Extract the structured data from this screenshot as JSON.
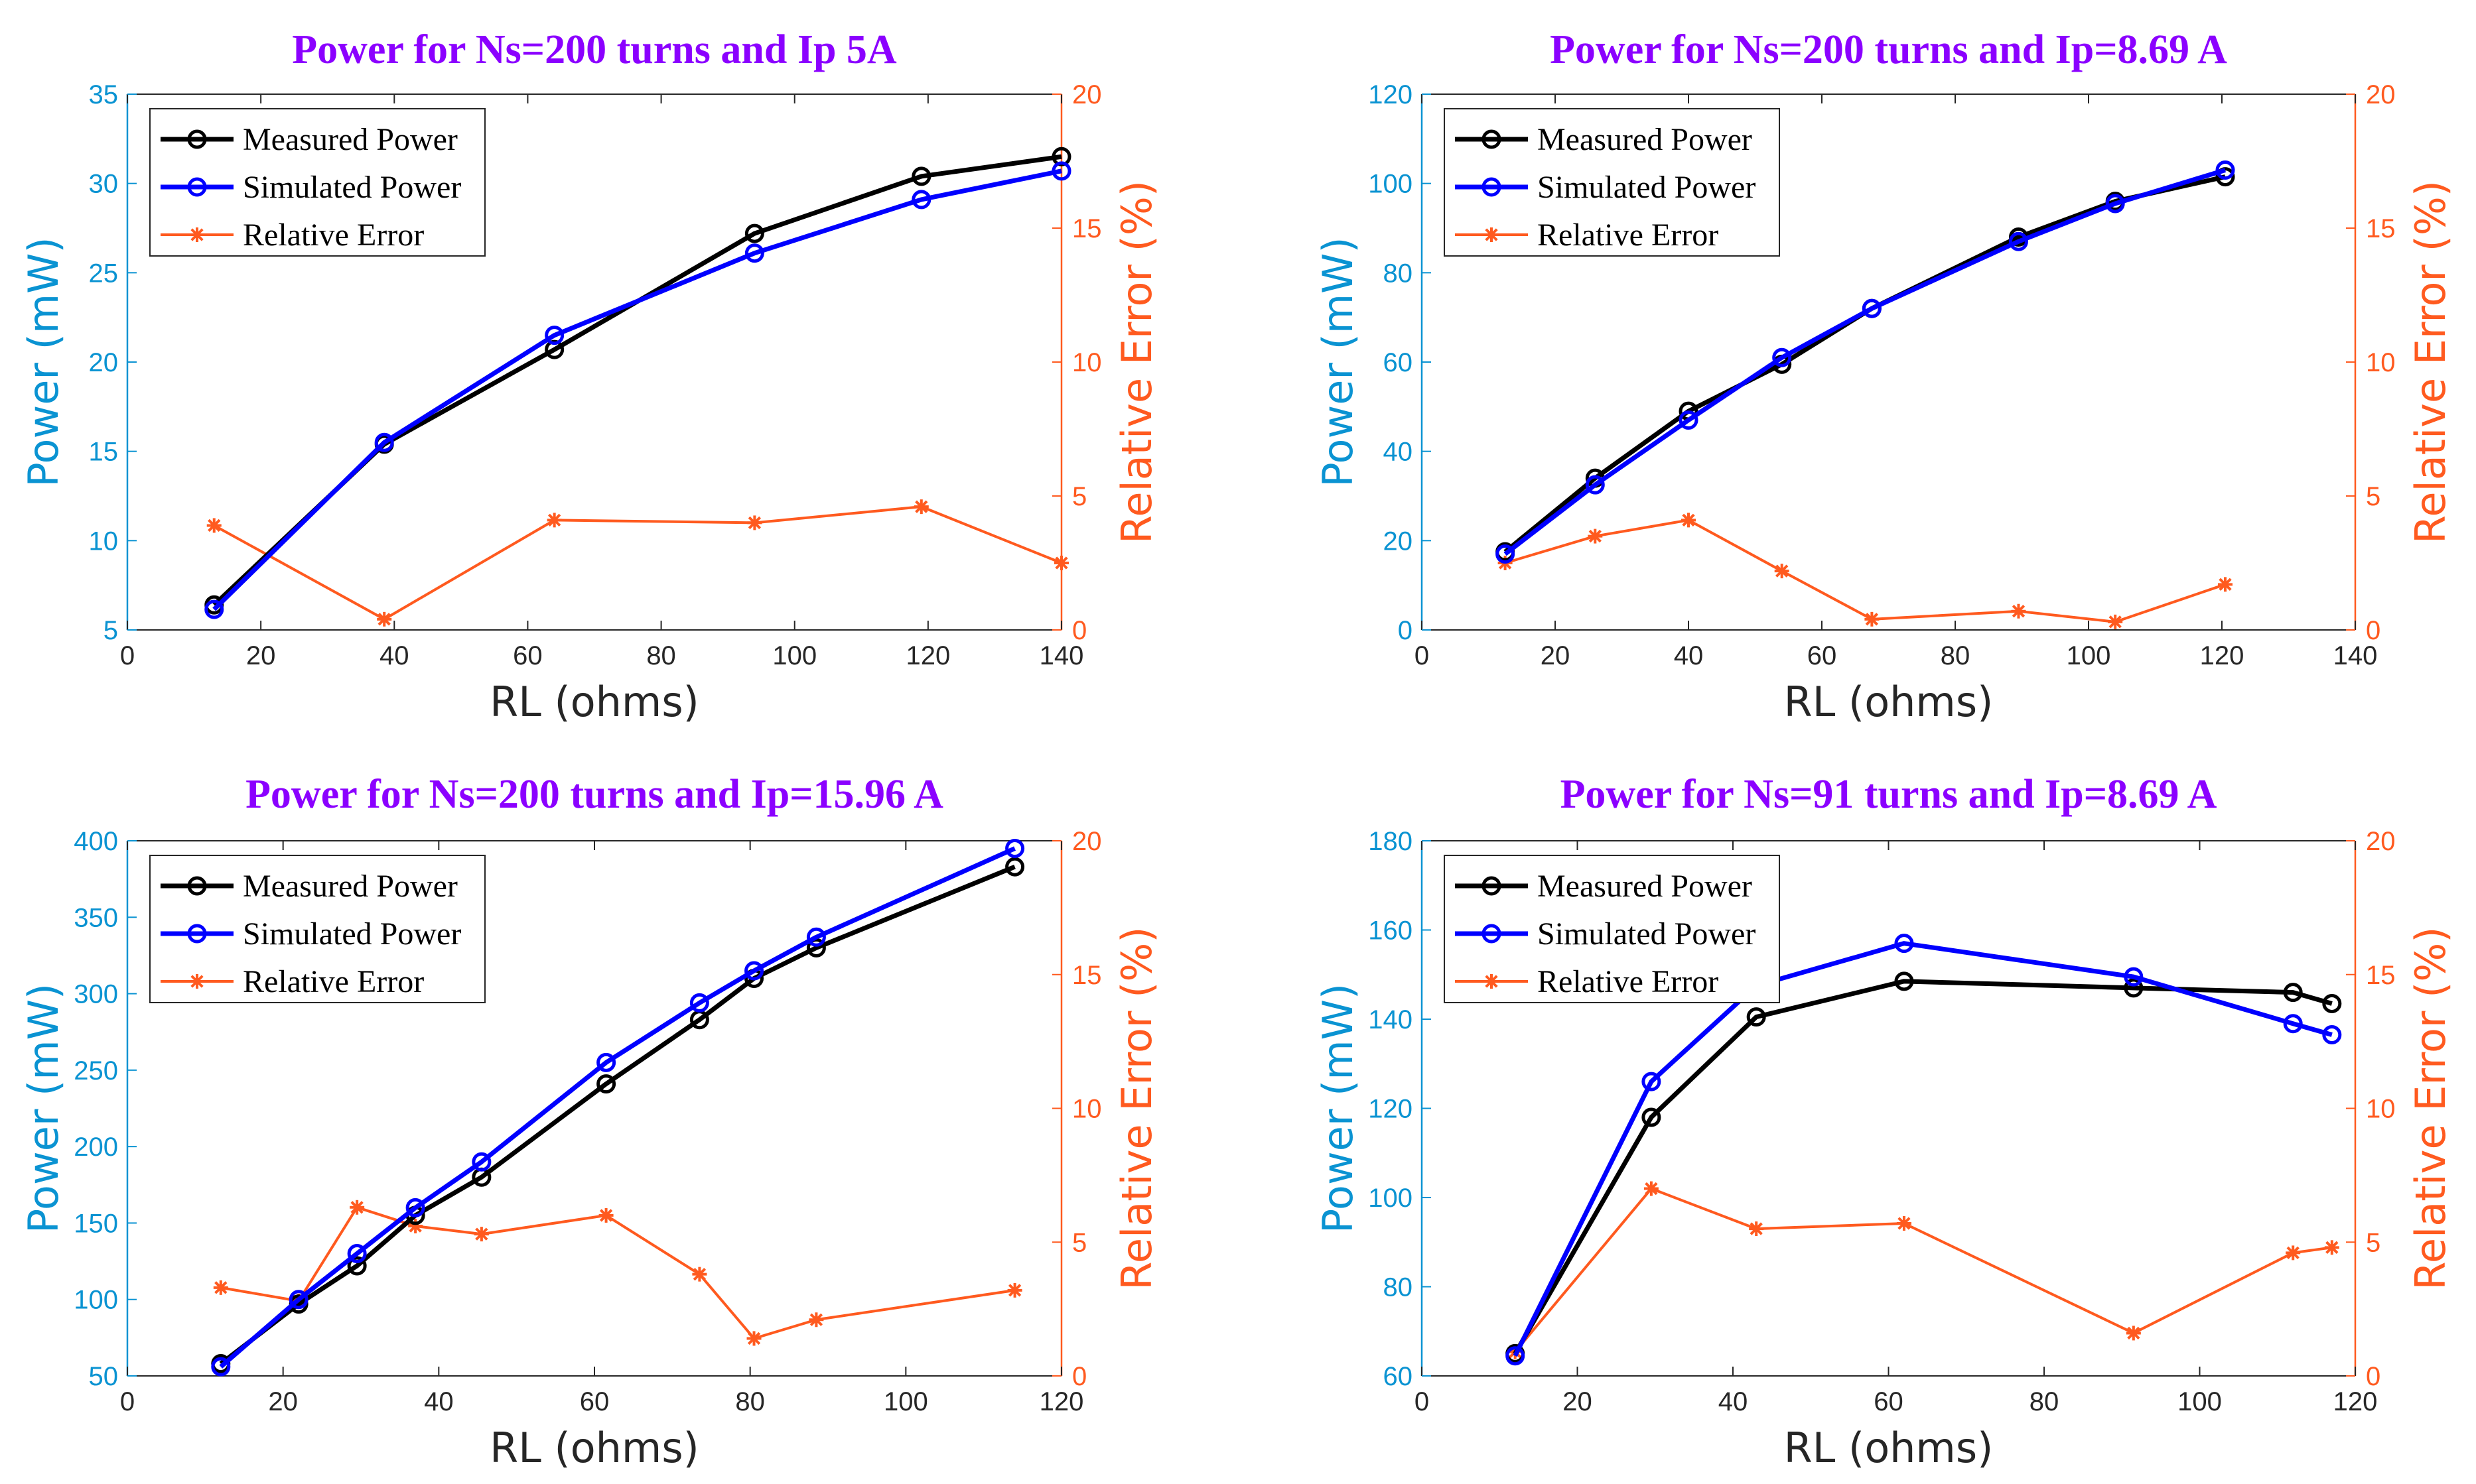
{
  "colors": {
    "measured": "#000000",
    "simulated": "#0000ff",
    "error": "#ff5a1f",
    "left_axis": "#0a93d2",
    "right_axis": "#ff5a1f",
    "title": "#8b00ff",
    "axis_box": "#262626"
  },
  "chart_data": [
    {
      "type": "line",
      "title": "Power for Ns=200 turns and Ip 5A",
      "xlabel": "RL (ohms)",
      "ylabel": "Power (mW)",
      "y2label": "Relative Error (%)",
      "xlim": [
        0,
        140
      ],
      "ylim": [
        5,
        35
      ],
      "y2lim": [
        0,
        20
      ],
      "xticks": [
        0,
        20,
        40,
        60,
        80,
        100,
        120,
        140
      ],
      "yticks": [
        5,
        10,
        15,
        20,
        25,
        30,
        35
      ],
      "y2ticks": [
        0,
        5,
        10,
        15,
        20
      ],
      "legend_location": "top-left",
      "series": [
        {
          "name": "Measured Power",
          "axis": "left",
          "marker": "circle",
          "x": [
            13,
            38.5,
            64,
            94,
            119,
            140
          ],
          "values": [
            6.4,
            15.4,
            20.7,
            27.2,
            30.4,
            31.5
          ]
        },
        {
          "name": "Simulated Power",
          "axis": "left",
          "marker": "circle",
          "x": [
            13,
            38.5,
            64,
            94,
            119,
            140
          ],
          "values": [
            6.15,
            15.5,
            21.5,
            26.1,
            29.1,
            30.7
          ]
        },
        {
          "name": "Relative Error",
          "axis": "right",
          "marker": "star",
          "x": [
            13,
            38.5,
            64,
            94,
            119,
            140
          ],
          "values": [
            3.9,
            0.4,
            4.1,
            4.0,
            4.6,
            2.5
          ]
        }
      ]
    },
    {
      "type": "line",
      "title": "Power for Ns=200 turns and Ip=8.69 A",
      "xlabel": "RL (ohms)",
      "ylabel": "Power (mW)",
      "y2label": "Relative Error (%)",
      "xlim": [
        0,
        140
      ],
      "ylim": [
        0,
        120
      ],
      "y2lim": [
        0,
        20
      ],
      "xticks": [
        0,
        20,
        40,
        60,
        80,
        100,
        120,
        140
      ],
      "yticks": [
        0,
        20,
        40,
        60,
        80,
        100,
        120
      ],
      "y2ticks": [
        0,
        5,
        10,
        15,
        20
      ],
      "legend_location": "top-left",
      "series": [
        {
          "name": "Measured Power",
          "axis": "left",
          "marker": "circle",
          "x": [
            12.5,
            26,
            40,
            54,
            67.5,
            89.5,
            104,
            120.5
          ],
          "values": [
            17.5,
            34,
            49,
            59.5,
            72,
            88,
            96,
            101.5
          ]
        },
        {
          "name": "Simulated Power",
          "axis": "left",
          "marker": "circle",
          "x": [
            12.5,
            26,
            40,
            54,
            67.5,
            89.5,
            104,
            120.5
          ],
          "values": [
            17,
            32.5,
            47,
            61,
            72,
            87,
            95.5,
            103
          ]
        },
        {
          "name": "Relative Error",
          "axis": "right",
          "marker": "star",
          "x": [
            12.5,
            26,
            40,
            54,
            67.5,
            89.5,
            104,
            120.5
          ],
          "values": [
            2.5,
            3.5,
            4.1,
            2.2,
            0.4,
            0.7,
            0.3,
            1.7
          ]
        }
      ]
    },
    {
      "type": "line",
      "title": "Power for Ns=200 turns and Ip=15.96 A",
      "xlabel": "RL (ohms)",
      "ylabel": "Power (mW)",
      "y2label": "Relative Error (%)",
      "xlim": [
        0,
        120
      ],
      "ylim": [
        50,
        400
      ],
      "y2lim": [
        0,
        20
      ],
      "xticks": [
        0,
        20,
        40,
        60,
        80,
        100,
        120
      ],
      "yticks": [
        50,
        100,
        150,
        200,
        250,
        300,
        350,
        400
      ],
      "y2ticks": [
        0,
        5,
        10,
        15,
        20
      ],
      "legend_location": "top-left",
      "series": [
        {
          "name": "Measured Power",
          "axis": "left",
          "marker": "circle",
          "x": [
            12,
            22,
            29.5,
            37,
            45.5,
            61.5,
            73.5,
            80.5,
            88.5,
            114
          ],
          "values": [
            58,
            97,
            122,
            155,
            180,
            241,
            283,
            310,
            330,
            383
          ]
        },
        {
          "name": "Simulated Power",
          "axis": "left",
          "marker": "circle",
          "x": [
            12,
            22,
            29.5,
            37,
            45.5,
            61.5,
            73.5,
            80.5,
            88.5,
            114
          ],
          "values": [
            56,
            100,
            130,
            160,
            190,
            255,
            294,
            315,
            337,
            395
          ]
        },
        {
          "name": "Relative Error",
          "axis": "right",
          "marker": "star",
          "x": [
            12,
            22,
            29.5,
            37,
            45.5,
            61.5,
            73.5,
            80.5,
            88.5,
            114
          ],
          "values": [
            3.3,
            2.8,
            6.3,
            5.6,
            5.3,
            6.0,
            3.8,
            1.4,
            2.1,
            3.2
          ]
        }
      ]
    },
    {
      "type": "line",
      "title": "Power for Ns=91 turns and Ip=8.69 A",
      "xlabel": "RL (ohms)",
      "ylabel": "Power (mW)",
      "y2label": "Relative Error (%)",
      "xlim": [
        0,
        120
      ],
      "ylim": [
        60,
        180
      ],
      "y2lim": [
        0,
        20
      ],
      "xticks": [
        0,
        20,
        40,
        60,
        80,
        100,
        120
      ],
      "yticks": [
        60,
        80,
        100,
        120,
        140,
        160,
        180
      ],
      "y2ticks": [
        0,
        5,
        10,
        15,
        20
      ],
      "legend_location": "top-left",
      "series": [
        {
          "name": "Measured Power",
          "axis": "left",
          "marker": "circle",
          "x": [
            12,
            29.5,
            43,
            62,
            91.5,
            112,
            117
          ],
          "values": [
            65,
            118,
            140.5,
            148.5,
            147,
            146,
            143.5
          ]
        },
        {
          "name": "Simulated Power",
          "axis": "left",
          "marker": "circle",
          "x": [
            12,
            29.5,
            43,
            62,
            91.5,
            112,
            117
          ],
          "values": [
            64.5,
            126,
            147.5,
            157,
            149.5,
            139,
            136.5
          ]
        },
        {
          "name": "Relative Error",
          "axis": "right",
          "marker": "star",
          "x": [
            12,
            29.5,
            43,
            62,
            91.5,
            112,
            117
          ],
          "values": [
            0.9,
            7.0,
            5.5,
            5.7,
            1.6,
            4.6,
            4.8
          ]
        }
      ]
    }
  ]
}
